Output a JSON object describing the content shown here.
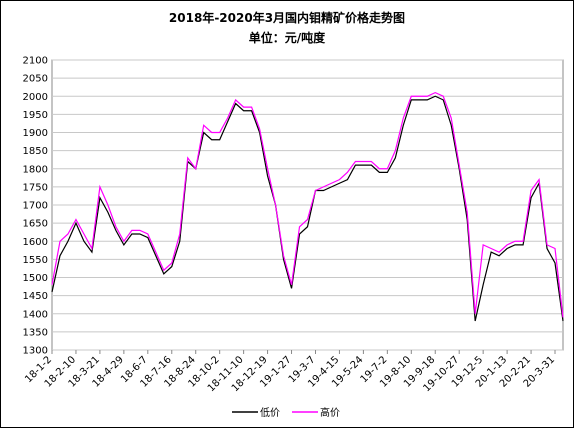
{
  "chart_data": {
    "type": "line",
    "title": "2018年-2020年3月国内钼精矿价格走势图",
    "subtitle": "单位：元/吨度",
    "categories": [
      "18-1-2",
      null,
      null,
      "18-2-10",
      null,
      null,
      "18-3-21",
      null,
      null,
      "18-4-29",
      null,
      null,
      "18-6-7",
      null,
      null,
      "18-7-16",
      null,
      null,
      "18-8-24",
      null,
      null,
      "18-10-2",
      null,
      null,
      "18-11-10",
      null,
      null,
      "18-12-19",
      null,
      null,
      "19-1-27",
      null,
      null,
      "19-3-7",
      null,
      null,
      "19-4-15",
      null,
      null,
      "19-5-24",
      null,
      null,
      "19-7-2",
      null,
      null,
      "19-8-10",
      null,
      null,
      "19-9-18",
      null,
      null,
      "19-10-27",
      null,
      null,
      "19-12-5",
      null,
      null,
      "20-1-13",
      null,
      null,
      "20-2-21",
      null,
      null,
      "20-3-31",
      null
    ],
    "series": [
      {
        "name": "低价",
        "color": "#000000",
        "values": [
          1460,
          1560,
          1600,
          1650,
          1600,
          1570,
          1720,
          1680,
          1630,
          1590,
          1620,
          1620,
          1610,
          1560,
          1510,
          1530,
          1600,
          1820,
          1800,
          1900,
          1880,
          1880,
          1930,
          1980,
          1960,
          1960,
          1900,
          1780,
          1700,
          1550,
          1470,
          1620,
          1640,
          1740,
          1740,
          1750,
          1760,
          1770,
          1810,
          1810,
          1810,
          1790,
          1790,
          1830,
          1920,
          1990,
          1990,
          1990,
          2000,
          1990,
          1920,
          1800,
          1660,
          1380,
          1480,
          1570,
          1560,
          1580,
          1590,
          1590,
          1720,
          1760,
          1580,
          1540,
          1380
        ]
      },
      {
        "name": "高价",
        "color": "#ff00ff",
        "values": [
          1480,
          1600,
          1620,
          1660,
          1620,
          1580,
          1750,
          1700,
          1640,
          1600,
          1630,
          1630,
          1620,
          1570,
          1520,
          1540,
          1620,
          1830,
          1800,
          1920,
          1900,
          1900,
          1940,
          1990,
          1970,
          1970,
          1910,
          1800,
          1700,
          1560,
          1480,
          1640,
          1660,
          1740,
          1750,
          1760,
          1770,
          1790,
          1820,
          1820,
          1820,
          1800,
          1800,
          1850,
          1940,
          2000,
          2000,
          2000,
          2010,
          2000,
          1940,
          1810,
          1680,
          1400,
          1590,
          1580,
          1570,
          1590,
          1600,
          1600,
          1740,
          1770,
          1590,
          1580,
          1390
        ]
      }
    ],
    "ylim": [
      1300,
      2100
    ],
    "yticks": [
      1300,
      1350,
      1400,
      1450,
      1500,
      1550,
      1600,
      1650,
      1700,
      1750,
      1800,
      1850,
      1900,
      1950,
      2000,
      2050,
      2100
    ],
    "grid": true,
    "legend": "bottom"
  }
}
